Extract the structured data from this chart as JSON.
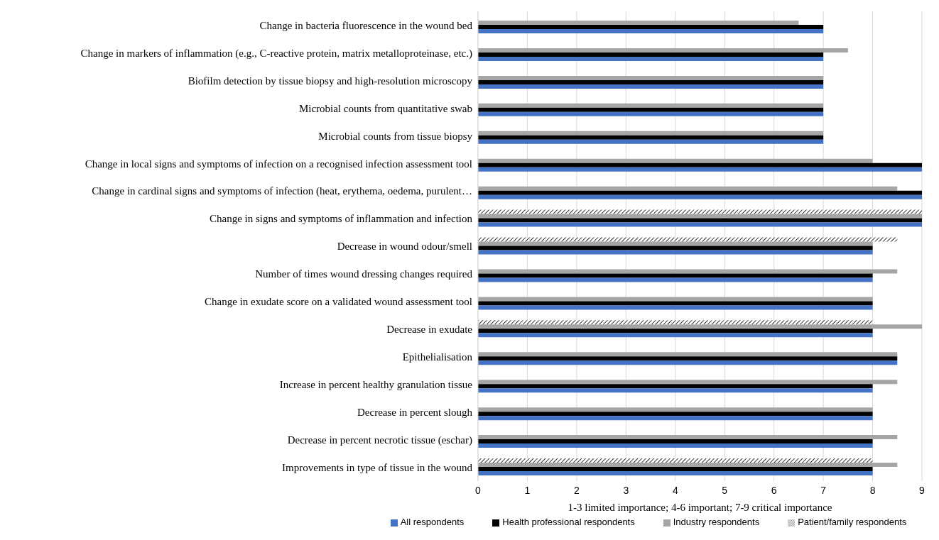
{
  "chart_data": {
    "type": "bar",
    "orientation": "horizontal",
    "xlabel": "1-3 limited importance; 4-6 important; 7-9 critical importance",
    "categories": [
      "Change in bacteria fluorescence in the wound bed",
      "Change in markers of inflammation (e.g., C-reactive protein, matrix metalloproteinase, etc.)",
      "Biofilm detection by tissue biopsy and high-resolution microscopy",
      "Microbial counts from quantitative swab",
      "Microbial counts from tissue biopsy",
      "Change in local signs and symptoms of infection on a recognised infection assessment tool",
      "Change in cardinal signs and symptoms of infection (heat, erythema, oedema, purulent…",
      "Change in signs and symptoms of inflammation and infection",
      "Decrease in wound odour/smell",
      "Number of times wound dressing changes required",
      "Change in exudate score on a validated wound assessment tool",
      "Decrease in exudate ",
      "Epithelialisation",
      "Increase in percent healthy granulation tissue",
      "Decrease in percent slough",
      "Decrease in percent necrotic tissue (eschar)",
      "Improvements in type of tissue in the wound"
    ],
    "series": [
      {
        "name": "Patient/family respondents",
        "color": "#000000",
        "values": [
          null,
          null,
          null,
          null,
          null,
          null,
          null,
          9,
          8.5,
          null,
          null,
          8,
          null,
          null,
          null,
          null,
          8
        ]
      },
      {
        "name": "Industry respondents",
        "color": "#a5a5a5",
        "values": [
          6.5,
          7.5,
          7,
          7,
          7,
          8,
          8.5,
          9,
          8,
          8.5,
          8,
          9,
          8.5,
          8.5,
          8,
          8.5,
          8.5
        ]
      },
      {
        "name": "Health professional respondents",
        "color": "#000000",
        "values": [
          7,
          7,
          7,
          7,
          7,
          9,
          9,
          9,
          8,
          8,
          8,
          8,
          8.5,
          8,
          8,
          8,
          8
        ]
      },
      {
        "name": "All respondents",
        "color": "#4472c4",
        "values": [
          7,
          7,
          7,
          7,
          7,
          9,
          9,
          9,
          8,
          8,
          8,
          8,
          8.5,
          8,
          8,
          8,
          8
        ]
      }
    ],
    "xlim": [
      0,
      9
    ],
    "xticks": [
      0,
      1,
      2,
      3,
      4,
      5,
      6,
      7,
      8,
      9
    ],
    "grid": "x",
    "legend": "bottom"
  }
}
